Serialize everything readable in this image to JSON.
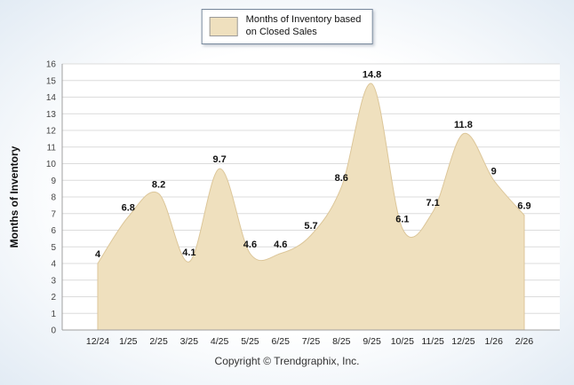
{
  "legend": {
    "label_line1": "Months of Inventory based",
    "label_line2": "on Closed Sales",
    "swatch_color": "#EFE0BE"
  },
  "y_axis_title": "Months of Inventory",
  "footer": "Copyright © Trendgraphix, Inc.",
  "chart_data": {
    "type": "area",
    "title": "",
    "xlabel": "",
    "ylabel": "Months of Inventory",
    "categories": [
      "12/24",
      "1/25",
      "2/25",
      "3/25",
      "4/25",
      "5/25",
      "6/25",
      "7/25",
      "8/25",
      "9/25",
      "10/25",
      "11/25",
      "12/25",
      "1/26",
      "2/26"
    ],
    "values": [
      4,
      6.8,
      8.2,
      4.1,
      9.7,
      4.6,
      4.6,
      5.7,
      8.6,
      14.8,
      6.1,
      7.1,
      11.8,
      9,
      6.9
    ],
    "labels": [
      "4",
      "6.8",
      "8.2",
      "4.1",
      "9.7",
      "4.6",
      "4.6",
      "5.7",
      "8.6",
      "14.8",
      "6.1",
      "7.1",
      "11.8",
      "9",
      "6.9"
    ],
    "ylim": [
      0,
      16
    ],
    "y_tick_step": 1,
    "grid": true,
    "legend_position": "top-center",
    "series_name": "Months of Inventory based on Closed Sales",
    "area_fill": "#EFE0BE",
    "area_stroke": "#DCC699",
    "grid_color": "#DCDCDC",
    "axis_color": "#A0A0A0"
  }
}
